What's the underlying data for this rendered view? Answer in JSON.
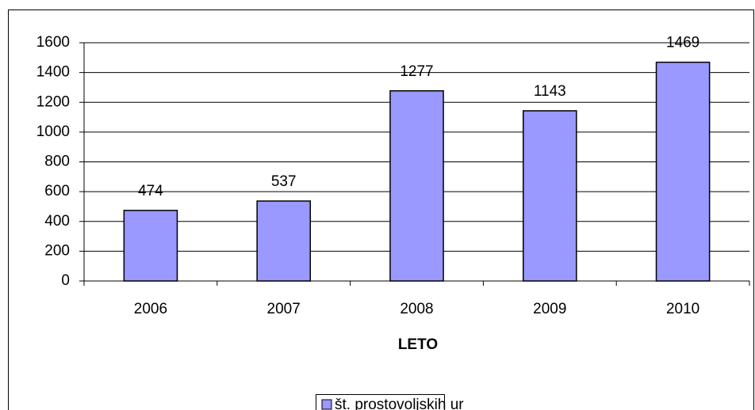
{
  "chart_data": {
    "type": "bar",
    "x_label": "LETO",
    "categories": [
      "2006",
      "2007",
      "2008",
      "2009",
      "2010"
    ],
    "series": [
      {
        "name": "št. prostovoljskih ur",
        "color": "#9999ff",
        "values": [
          474,
          537,
          1277,
          1143,
          1469
        ]
      }
    ],
    "ylim": [
      0,
      1600
    ],
    "yticks": [
      0,
      200,
      400,
      600,
      800,
      1000,
      1200,
      1400,
      1600
    ],
    "grid": true,
    "legend": "bottom"
  }
}
